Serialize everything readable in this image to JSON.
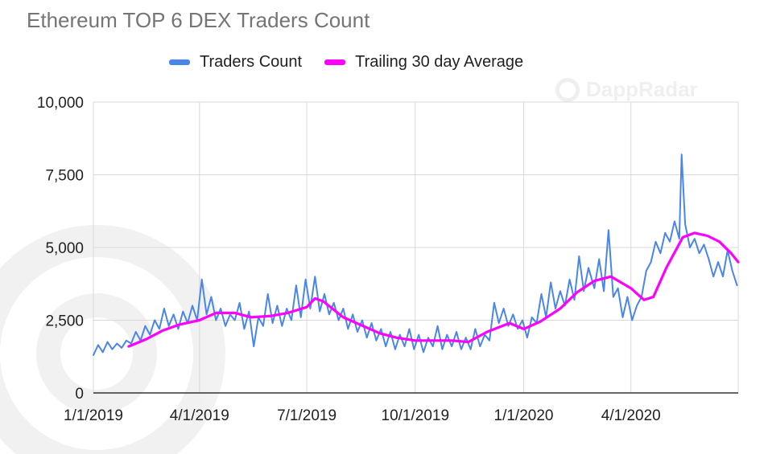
{
  "title": "Ethereum TOP 6 DEX Traders Count",
  "watermark": "DappRadar",
  "legend": [
    {
      "label": "Traders Count",
      "color": "#4a86e8"
    },
    {
      "label": "Trailing 30 day Average",
      "color": "#ff00ff"
    }
  ],
  "chart_data": {
    "type": "line",
    "title": "Ethereum TOP 6 DEX Traders Count",
    "xlabel": "",
    "ylabel": "",
    "x_ticks": [
      "1/1/2019",
      "4/1/2019",
      "7/1/2019",
      "10/1/2019",
      "1/1/2020",
      "4/1/2020"
    ],
    "y_ticks": [
      "0",
      "2,500",
      "5,000",
      "7,500",
      "10,000"
    ],
    "ylim": [
      0,
      10000
    ],
    "xlim": [
      "2019-01-01",
      "2020-07-01"
    ],
    "grid": true,
    "legend_position": "top",
    "series": [
      {
        "name": "Traders Count",
        "color": "#4a86e8",
        "points": [
          [
            "2019-01-01",
            1300
          ],
          [
            "2019-01-05",
            1650
          ],
          [
            "2019-01-09",
            1400
          ],
          [
            "2019-01-13",
            1750
          ],
          [
            "2019-01-17",
            1500
          ],
          [
            "2019-01-21",
            1700
          ],
          [
            "2019-01-25",
            1550
          ],
          [
            "2019-01-29",
            1800
          ],
          [
            "2019-02-02",
            1700
          ],
          [
            "2019-02-06",
            2100
          ],
          [
            "2019-02-10",
            1800
          ],
          [
            "2019-02-14",
            2300
          ],
          [
            "2019-02-18",
            2000
          ],
          [
            "2019-02-22",
            2500
          ],
          [
            "2019-02-26",
            2200
          ],
          [
            "2019-03-02",
            2900
          ],
          [
            "2019-03-06",
            2300
          ],
          [
            "2019-03-10",
            2700
          ],
          [
            "2019-03-14",
            2200
          ],
          [
            "2019-03-18",
            2800
          ],
          [
            "2019-03-22",
            2400
          ],
          [
            "2019-03-26",
            3000
          ],
          [
            "2019-03-30",
            2500
          ],
          [
            "2019-04-03",
            3900
          ],
          [
            "2019-04-07",
            2700
          ],
          [
            "2019-04-11",
            3300
          ],
          [
            "2019-04-15",
            2500
          ],
          [
            "2019-04-19",
            2900
          ],
          [
            "2019-04-23",
            2300
          ],
          [
            "2019-04-27",
            2700
          ],
          [
            "2019-05-01",
            2500
          ],
          [
            "2019-05-05",
            3100
          ],
          [
            "2019-05-09",
            2200
          ],
          [
            "2019-05-13",
            2800
          ],
          [
            "2019-05-17",
            1600
          ],
          [
            "2019-05-21",
            2600
          ],
          [
            "2019-05-25",
            2300
          ],
          [
            "2019-05-29",
            3400
          ],
          [
            "2019-06-02",
            2400
          ],
          [
            "2019-06-06",
            3000
          ],
          [
            "2019-06-10",
            2300
          ],
          [
            "2019-06-14",
            2900
          ],
          [
            "2019-06-18",
            2500
          ],
          [
            "2019-06-22",
            3700
          ],
          [
            "2019-06-26",
            2600
          ],
          [
            "2019-06-30",
            3900
          ],
          [
            "2019-07-04",
            2900
          ],
          [
            "2019-07-08",
            4000
          ],
          [
            "2019-07-12",
            2800
          ],
          [
            "2019-07-16",
            3400
          ],
          [
            "2019-07-20",
            2700
          ],
          [
            "2019-07-24",
            3100
          ],
          [
            "2019-07-28",
            2500
          ],
          [
            "2019-08-01",
            2900
          ],
          [
            "2019-08-05",
            2200
          ],
          [
            "2019-08-09",
            2700
          ],
          [
            "2019-08-13",
            2100
          ],
          [
            "2019-08-17",
            2500
          ],
          [
            "2019-08-21",
            1900
          ],
          [
            "2019-08-25",
            2400
          ],
          [
            "2019-08-29",
            1800
          ],
          [
            "2019-09-02",
            2200
          ],
          [
            "2019-09-06",
            1600
          ],
          [
            "2019-09-10",
            2100
          ],
          [
            "2019-09-14",
            1500
          ],
          [
            "2019-09-18",
            2000
          ],
          [
            "2019-09-22",
            1600
          ],
          [
            "2019-09-26",
            2200
          ],
          [
            "2019-09-30",
            1500
          ],
          [
            "2019-10-04",
            2000
          ],
          [
            "2019-10-08",
            1400
          ],
          [
            "2019-10-12",
            1900
          ],
          [
            "2019-10-16",
            1600
          ],
          [
            "2019-10-20",
            2300
          ],
          [
            "2019-10-24",
            1500
          ],
          [
            "2019-10-28",
            2000
          ],
          [
            "2019-11-01",
            1600
          ],
          [
            "2019-11-05",
            2100
          ],
          [
            "2019-11-09",
            1500
          ],
          [
            "2019-11-13",
            1900
          ],
          [
            "2019-11-17",
            1500
          ],
          [
            "2019-11-21",
            2200
          ],
          [
            "2019-11-25",
            1600
          ],
          [
            "2019-11-29",
            2000
          ],
          [
            "2019-12-03",
            1800
          ],
          [
            "2019-12-07",
            3100
          ],
          [
            "2019-12-11",
            2400
          ],
          [
            "2019-12-15",
            2900
          ],
          [
            "2019-12-19",
            2300
          ],
          [
            "2019-12-23",
            2700
          ],
          [
            "2019-12-27",
            2200
          ],
          [
            "2019-12-31",
            2500
          ],
          [
            "2020-01-04",
            1900
          ],
          [
            "2020-01-08",
            2600
          ],
          [
            "2020-01-12",
            2400
          ],
          [
            "2020-01-16",
            3400
          ],
          [
            "2020-01-20",
            2600
          ],
          [
            "2020-01-24",
            3800
          ],
          [
            "2020-01-28",
            2900
          ],
          [
            "2020-02-01",
            3500
          ],
          [
            "2020-02-05",
            3000
          ],
          [
            "2020-02-09",
            3900
          ],
          [
            "2020-02-13",
            3200
          ],
          [
            "2020-02-17",
            4700
          ],
          [
            "2020-02-21",
            3500
          ],
          [
            "2020-02-25",
            4300
          ],
          [
            "2020-03-01",
            3600
          ],
          [
            "2020-03-05",
            4600
          ],
          [
            "2020-03-09",
            3500
          ],
          [
            "2020-03-13",
            5600
          ],
          [
            "2020-03-17",
            3300
          ],
          [
            "2020-03-21",
            3600
          ],
          [
            "2020-03-25",
            2600
          ],
          [
            "2020-03-29",
            3300
          ],
          [
            "2020-04-02",
            2500
          ],
          [
            "2020-04-06",
            3000
          ],
          [
            "2020-04-10",
            3300
          ],
          [
            "2020-04-14",
            4200
          ],
          [
            "2020-04-18",
            4500
          ],
          [
            "2020-04-22",
            5200
          ],
          [
            "2020-04-26",
            4800
          ],
          [
            "2020-04-30",
            5500
          ],
          [
            "2020-05-04",
            5200
          ],
          [
            "2020-05-08",
            5900
          ],
          [
            "2020-05-12",
            5300
          ],
          [
            "2020-05-14",
            8200
          ],
          [
            "2020-05-17",
            5800
          ],
          [
            "2020-05-21",
            5000
          ],
          [
            "2020-05-25",
            5300
          ],
          [
            "2020-05-29",
            4800
          ],
          [
            "2020-06-02",
            5100
          ],
          [
            "2020-06-06",
            4600
          ],
          [
            "2020-06-10",
            4000
          ],
          [
            "2020-06-14",
            4500
          ],
          [
            "2020-06-18",
            4000
          ],
          [
            "2020-06-22",
            4900
          ],
          [
            "2020-06-26",
            4200
          ],
          [
            "2020-06-30",
            3700
          ]
        ]
      },
      {
        "name": "Trailing 30 day Average",
        "color": "#ff00ff",
        "points": [
          [
            "2019-01-31",
            1600
          ],
          [
            "2019-02-15",
            1850
          ],
          [
            "2019-03-01",
            2150
          ],
          [
            "2019-03-15",
            2350
          ],
          [
            "2019-04-01",
            2500
          ],
          [
            "2019-04-15",
            2750
          ],
          [
            "2019-05-01",
            2750
          ],
          [
            "2019-05-15",
            2600
          ],
          [
            "2019-06-01",
            2650
          ],
          [
            "2019-06-15",
            2750
          ],
          [
            "2019-07-01",
            2950
          ],
          [
            "2019-07-08",
            3250
          ],
          [
            "2019-07-15",
            3150
          ],
          [
            "2019-08-01",
            2600
          ],
          [
            "2019-08-15",
            2350
          ],
          [
            "2019-09-01",
            2050
          ],
          [
            "2019-09-15",
            1900
          ],
          [
            "2019-10-01",
            1800
          ],
          [
            "2019-10-15",
            1800
          ],
          [
            "2019-11-01",
            1800
          ],
          [
            "2019-11-15",
            1750
          ],
          [
            "2019-12-01",
            2100
          ],
          [
            "2019-12-20",
            2400
          ],
          [
            "2020-01-01",
            2200
          ],
          [
            "2020-01-15",
            2450
          ],
          [
            "2020-02-01",
            2900
          ],
          [
            "2020-02-15",
            3450
          ],
          [
            "2020-03-01",
            3850
          ],
          [
            "2020-03-15",
            4000
          ],
          [
            "2020-04-01",
            3600
          ],
          [
            "2020-04-12",
            3200
          ],
          [
            "2020-04-20",
            3300
          ],
          [
            "2020-05-01",
            4300
          ],
          [
            "2020-05-15",
            5350
          ],
          [
            "2020-05-25",
            5500
          ],
          [
            "2020-06-05",
            5400
          ],
          [
            "2020-06-15",
            5200
          ],
          [
            "2020-06-25",
            4800
          ],
          [
            "2020-07-01",
            4500
          ]
        ]
      }
    ]
  }
}
